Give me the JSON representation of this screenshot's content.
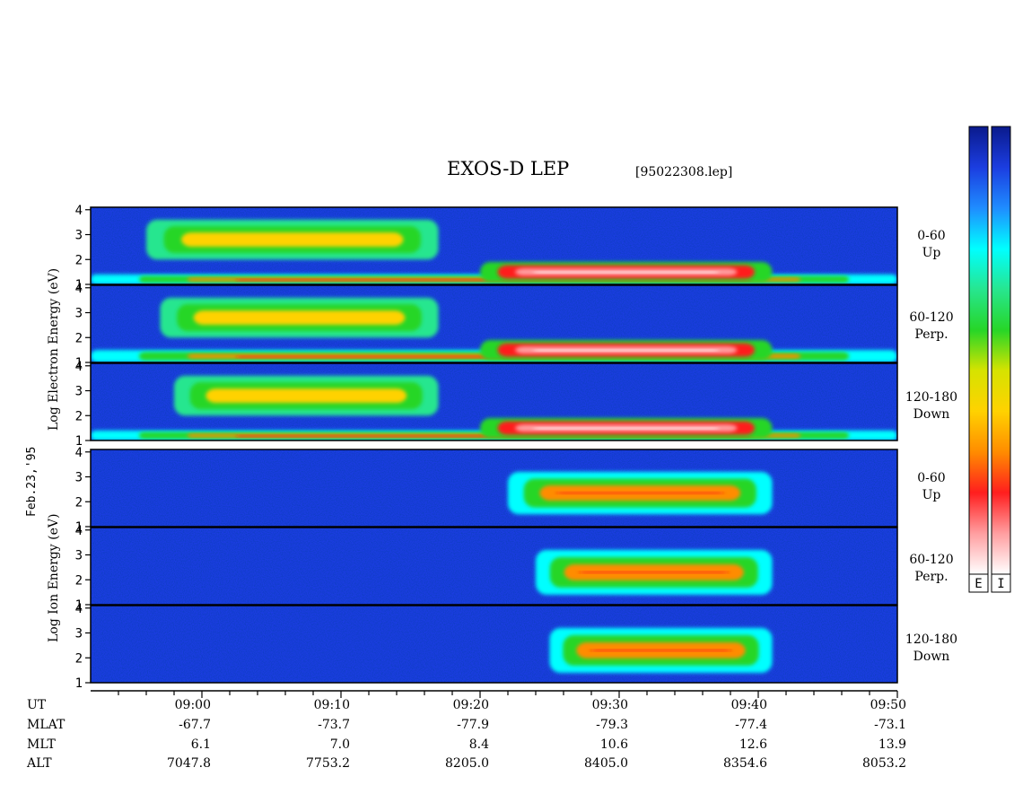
{
  "header": {
    "title": "EXOS-D LEP",
    "file_id": "[95022308.lep]"
  },
  "side_date": "Feb.23,'95",
  "electron_axis_label": [
    "Log",
    "Electron",
    "Energy",
    "(eV)"
  ],
  "ion_axis_label": [
    "Log",
    "Ion",
    "Energy",
    "(eV)"
  ],
  "panels": [
    {
      "species": "Electron",
      "pitch_angle": "0-60",
      "direction": "Up"
    },
    {
      "species": "Electron",
      "pitch_angle": "60-120",
      "direction": "Perp."
    },
    {
      "species": "Electron",
      "pitch_angle": "120-180",
      "direction": "Down"
    },
    {
      "species": "Ion",
      "pitch_angle": "0-60",
      "direction": "Up"
    },
    {
      "species": "Ion",
      "pitch_angle": "60-120",
      "direction": "Perp."
    },
    {
      "species": "Ion",
      "pitch_angle": "120-180",
      "direction": "Down"
    }
  ],
  "colorbar": {
    "labels": [
      "E",
      "I"
    ],
    "colors": [
      "#0a1a8c",
      "#1b3de0",
      "#1f8cff",
      "#00ffff",
      "#27e68f",
      "#27d627",
      "#d6e300",
      "#ffd200",
      "#ff8c00",
      "#ff1e1e",
      "#ff9ea0",
      "#ffffff"
    ]
  },
  "ephemeris": {
    "rows": [
      {
        "name": "UT",
        "values": [
          "09:00",
          "09:10",
          "09:20",
          "09:30",
          "09:40",
          "09:50"
        ]
      },
      {
        "name": "MLAT",
        "values": [
          "-67.7",
          "-73.7",
          "-77.9",
          "-79.3",
          "-77.4",
          "-73.1"
        ]
      },
      {
        "name": "MLT",
        "values": [
          "6.1",
          "7.0",
          "8.4",
          "10.6",
          "12.6",
          "13.9"
        ]
      },
      {
        "name": "ALT",
        "values": [
          "7047.8",
          "7753.2",
          "8205.0",
          "8405.0",
          "8354.6",
          "8053.2"
        ]
      }
    ]
  },
  "chart_data": {
    "type": "heatmap",
    "title": "EXOS-D LEP",
    "xlabel": "UT",
    "ylabel": "Log Energy (eV)",
    "x_ticks": [
      "09:00",
      "09:10",
      "09:20",
      "09:30",
      "09:40",
      "09:50"
    ],
    "x_range": [
      "08:52",
      "09:50"
    ],
    "y_ticks": [
      1,
      2,
      3,
      4
    ],
    "ylim": [
      1,
      4.1
    ],
    "panels": [
      {
        "name": "Electron 0-60 Up",
        "features": [
          {
            "band": "low-energy belt",
            "t": [
              "08:52",
              "09:50"
            ],
            "logE": [
              1.0,
              1.4
            ],
            "level": "high"
          },
          {
            "band": "mid-energy enhancement",
            "t": [
              "08:56",
              "09:17"
            ],
            "logE": [
              2.0,
              3.6
            ],
            "level": "medium"
          },
          {
            "band": "cusp electron band",
            "t": [
              "09:20",
              "09:41"
            ],
            "logE": [
              1.1,
              1.9
            ],
            "level": "very high"
          }
        ]
      },
      {
        "name": "Electron 60-120 Perp.",
        "features": [
          {
            "band": "low-energy belt",
            "t": [
              "08:52",
              "09:50"
            ],
            "logE": [
              1.0,
              1.5
            ],
            "level": "high"
          },
          {
            "band": "mid-energy enhancement",
            "t": [
              "08:57",
              "09:17"
            ],
            "logE": [
              2.0,
              3.6
            ],
            "level": "medium"
          },
          {
            "band": "cusp electron band",
            "t": [
              "09:20",
              "09:41"
            ],
            "logE": [
              1.1,
              1.9
            ],
            "level": "very high"
          }
        ]
      },
      {
        "name": "Electron 120-180 Down",
        "features": [
          {
            "band": "low-energy belt",
            "t": [
              "08:52",
              "09:50"
            ],
            "logE": [
              1.0,
              1.4
            ],
            "level": "high"
          },
          {
            "band": "mid-energy enhancement",
            "t": [
              "08:58",
              "09:17"
            ],
            "logE": [
              2.0,
              3.6
            ],
            "level": "medium"
          },
          {
            "band": "cusp electron band",
            "t": [
              "09:20",
              "09:41"
            ],
            "logE": [
              1.1,
              1.9
            ],
            "level": "very high"
          }
        ]
      },
      {
        "name": "Ion 0-60 Up",
        "features": [
          {
            "band": "cusp ion band",
            "t": [
              "09:22",
              "09:41"
            ],
            "logE": [
              1.5,
              3.2
            ],
            "level": "high"
          }
        ]
      },
      {
        "name": "Ion 60-120 Perp.",
        "features": [
          {
            "band": "cusp ion band",
            "t": [
              "09:24",
              "09:41"
            ],
            "logE": [
              1.4,
              3.2
            ],
            "level": "high"
          }
        ]
      },
      {
        "name": "Ion 120-180 Down",
        "features": [
          {
            "band": "cusp ion band",
            "t": [
              "09:25",
              "09:41"
            ],
            "logE": [
              1.4,
              3.2
            ],
            "level": "high"
          }
        ]
      }
    ]
  }
}
